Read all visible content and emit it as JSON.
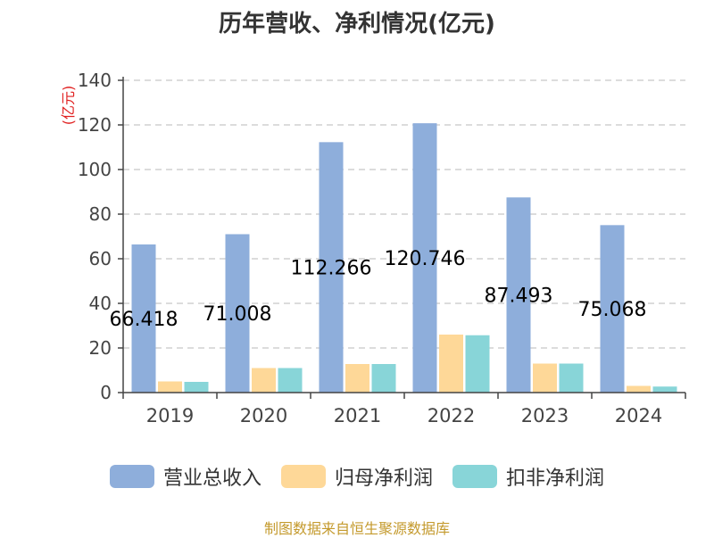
{
  "chart_data": {
    "type": "bar",
    "title": "历年营收、净利情况(亿元)",
    "ylabel": "(亿元)",
    "categories": [
      "2019",
      "2020",
      "2021",
      "2022",
      "2023",
      "2024"
    ],
    "series": [
      {
        "name": "营业总收入",
        "color": "#8eaedb",
        "values": [
          66.418,
          71.008,
          112.266,
          120.746,
          87.493,
          75.068
        ]
      },
      {
        "name": "归母净利润",
        "color": "#fed898",
        "values": [
          5.0,
          11.0,
          12.8,
          26.0,
          13.0,
          3.0
        ]
      },
      {
        "name": "扣非净利润",
        "color": "#88d5d8",
        "values": [
          4.8,
          11.0,
          12.8,
          25.7,
          13.0,
          2.7
        ]
      }
    ],
    "data_labels": [
      "66.418",
      "71.008",
      "112.266",
      "120.746",
      "87.493",
      "75.068"
    ],
    "y_ticks": [
      "0",
      "20",
      "40",
      "60",
      "80",
      "100",
      "120",
      "140"
    ],
    "ylim": [
      0,
      140
    ],
    "grid": true,
    "legend_position": "bottom"
  },
  "source": "制图数据来自恒生聚源数据库"
}
